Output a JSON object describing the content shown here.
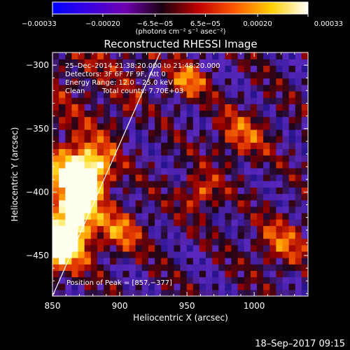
{
  "chart_data": {
    "type": "heatmap",
    "title": "Reconstructed RHESSI Image",
    "xlabel": "Heliocentric X (arcsec)",
    "ylabel": "Heliocentric Y (arcsec)",
    "xlim": [
      850,
      1040
    ],
    "ylim": [
      -482,
      -290
    ],
    "x_ticks": [
      850,
      900,
      950,
      1000
    ],
    "x_tick_labels": [
      "850",
      "900",
      "950",
      "1000"
    ],
    "y_ticks": [
      -300,
      -350,
      -400,
      -450
    ],
    "y_tick_labels": [
      "−300",
      "−350",
      "−400",
      "−450"
    ],
    "colorbar": {
      "range": [
        -0.00033,
        0.00033
      ],
      "tick_values": [
        -0.00033,
        -0.0002,
        -6.5e-05,
        6.5e-05,
        0.0002,
        0.00033
      ],
      "tick_labels": [
        "−0.00033",
        "−0.00020",
        "−6.5e−05",
        "6.5e−05",
        "0.00020",
        "0.00033"
      ],
      "unit_label": "(photons cm⁻² s⁻¹ asec⁻²)",
      "colors": [
        "#0000ff",
        "#3a00e0",
        "#7000b0",
        "#1a0010",
        "#c00000",
        "#ff5a00",
        "#ffd000",
        "#ffffff"
      ]
    },
    "annotations": [
      "25–Dec–2014 21:38:20.000 to 21:48:20.000",
      "Detectors: 3F 6F 7F 9F, Att 0",
      "Energy Range: 12.0 – 25.0 keV",
      "Clean",
      "Total counts: 7.70E+03"
    ],
    "peak_label": "Position of Peak = [857,−377]",
    "limb_line": {
      "x": [
        850,
        930
      ],
      "y": [
        -482,
        -290
      ]
    },
    "hot_blobs": [
      {
        "x": 872,
        "y": -385,
        "sigma": 14,
        "amp": 1.0
      },
      {
        "x": 858,
        "y": -440,
        "sigma": 13,
        "amp": 0.95
      },
      {
        "x": 868,
        "y": -415,
        "sigma": 11,
        "amp": 0.7
      },
      {
        "x": 950,
        "y": -312,
        "sigma": 10,
        "amp": 0.45
      },
      {
        "x": 900,
        "y": -430,
        "sigma": 12,
        "amp": 0.4
      },
      {
        "x": 990,
        "y": -355,
        "sigma": 14,
        "amp": 0.35
      },
      {
        "x": 1020,
        "y": -440,
        "sigma": 14,
        "amp": 0.35
      },
      {
        "x": 960,
        "y": -400,
        "sigma": 10,
        "amp": 0.4
      }
    ],
    "grid": false
  },
  "footer": {
    "timestamp": "18–Sep–2017 09:15"
  }
}
